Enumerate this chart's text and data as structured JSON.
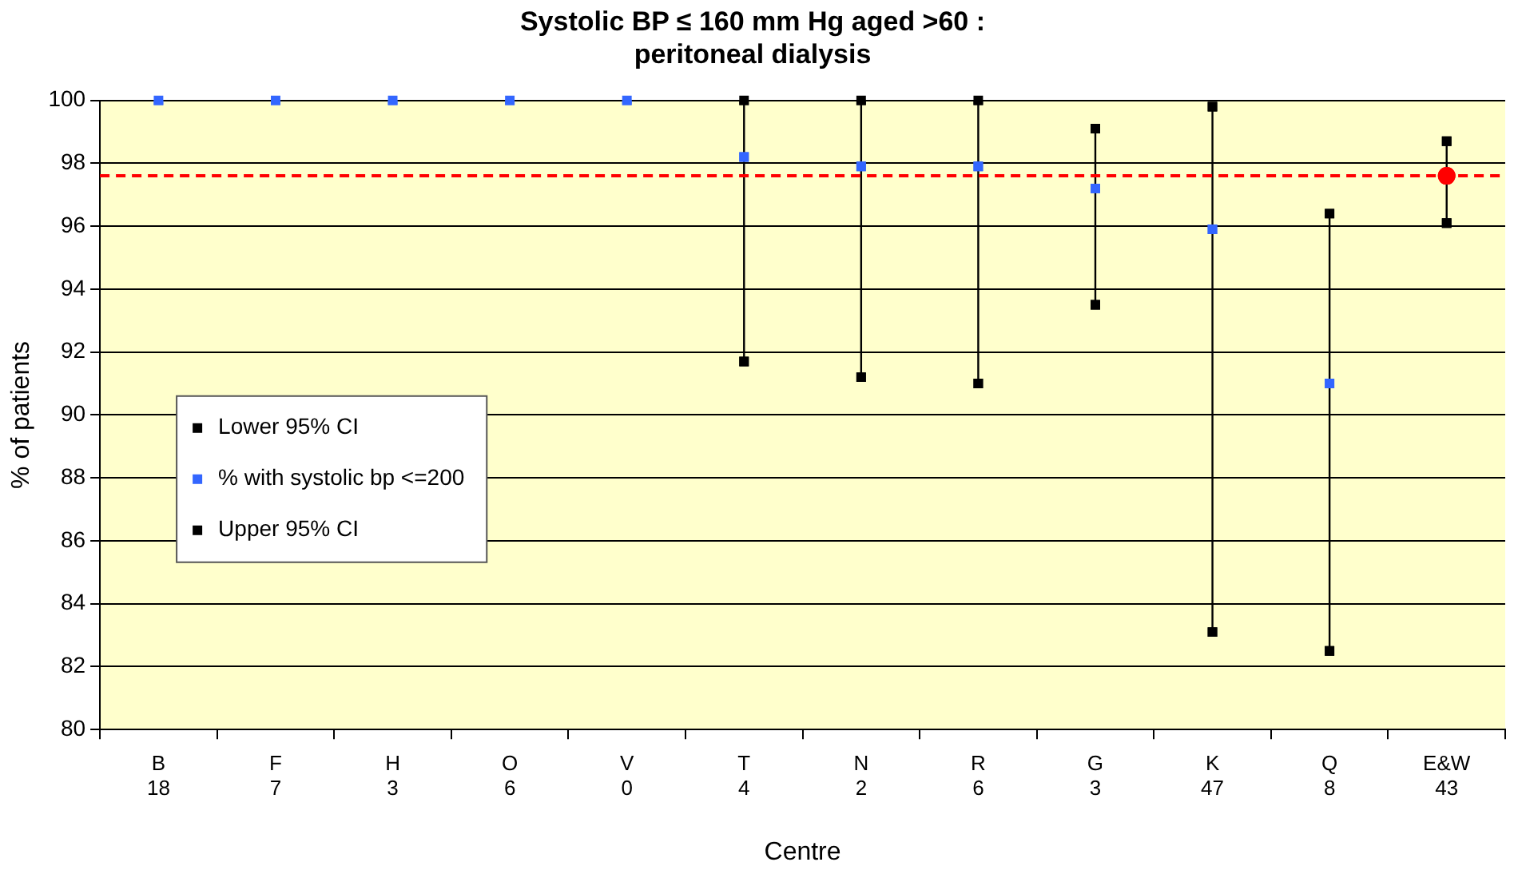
{
  "chart_data": {
    "type": "scatter",
    "title": "Systolic BP ≤ 160 mm Hg aged >60 :\nperitoneal dialysis",
    "xlabel": "Centre",
    "ylabel": "% of patients",
    "categories": [
      "B\n18",
      "F\n7",
      "H\n3",
      "O\n6",
      "V\n0",
      "T\n4",
      "N\n2",
      "R\n6",
      "G\n3",
      "K\n47",
      "Q\n8",
      "E&W\n43"
    ],
    "series": [
      {
        "name": "Lower 95% CI",
        "color": "#000000",
        "marker": "square",
        "values": [
          null,
          null,
          null,
          null,
          null,
          91.7,
          91.2,
          91.0,
          93.5,
          83.1,
          82.5,
          96.1
        ]
      },
      {
        "name": "% with systolic bp <=200",
        "color": "#3366ff",
        "marker": "square",
        "colors": [
          "#3366ff",
          "#3366ff",
          "#3366ff",
          "#3366ff",
          "#3366ff",
          "#3366ff",
          "#3366ff",
          "#3366ff",
          "#3366ff",
          "#3366ff",
          "#3366ff",
          "#ff0000"
        ],
        "values": [
          100,
          100,
          100,
          100,
          100,
          98.2,
          97.9,
          97.9,
          97.2,
          95.9,
          91.0,
          97.6
        ]
      },
      {
        "name": "Upper 95% CI",
        "color": "#000000",
        "marker": "square",
        "values": [
          null,
          null,
          null,
          null,
          null,
          100,
          100,
          100,
          99.1,
          99.8,
          96.4,
          98.7
        ]
      }
    ],
    "ylim": [
      80,
      100
    ],
    "yticks": [
      80,
      82,
      84,
      86,
      88,
      90,
      92,
      94,
      96,
      98,
      100
    ],
    "grid": "y",
    "legend": "left",
    "ref_lines": [
      {
        "axis": "y",
        "value": 97.6,
        "color": "#ff0000",
        "line_style": "dashed"
      }
    ]
  }
}
